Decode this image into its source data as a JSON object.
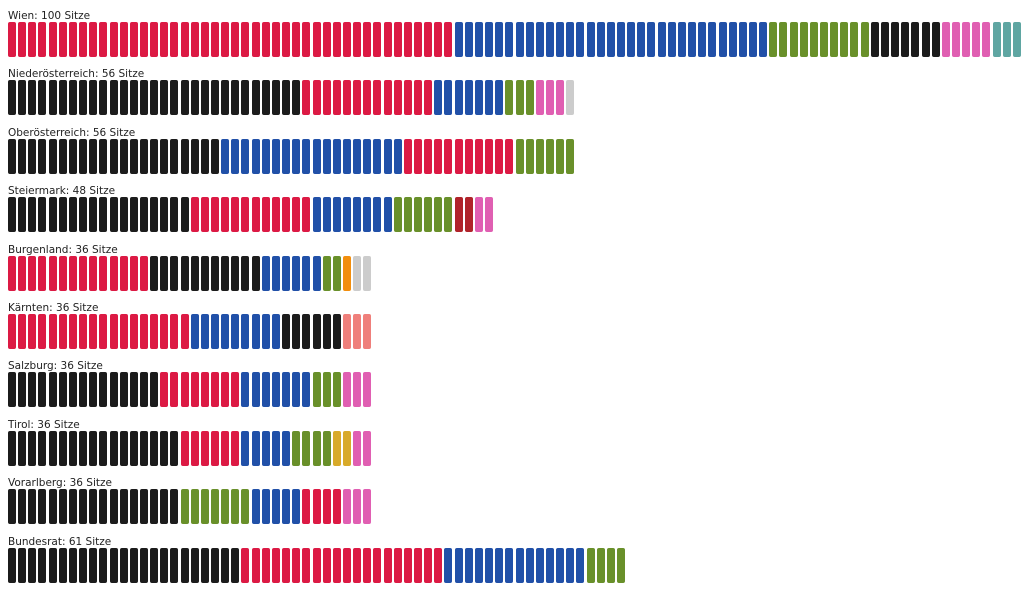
{
  "colors": {
    "red": "#dc1a44",
    "blue": "#2150a8",
    "green": "#69902a",
    "black": "#1c1c1c",
    "pink": "#e05fb2",
    "teal": "#5fa6a2",
    "grey": "#cccccc",
    "orange": "#f28e0d",
    "salmon": "#ef7f7b",
    "darkred": "#b0232a",
    "gold": "#d8aa2a"
  },
  "chart_data": {
    "type": "bar",
    "rows": [
      {
        "label": "Wien: 100 Sitze",
        "segments": [
          {
            "color": "red",
            "seats": 44
          },
          {
            "color": "blue",
            "seats": 31
          },
          {
            "color": "green",
            "seats": 10
          },
          {
            "color": "black",
            "seats": 7
          },
          {
            "color": "pink",
            "seats": 5
          },
          {
            "color": "teal",
            "seats": 3
          }
        ]
      },
      {
        "label": "Niederösterreich: 56 Sitze",
        "segments": [
          {
            "color": "black",
            "seats": 29
          },
          {
            "color": "red",
            "seats": 13
          },
          {
            "color": "blue",
            "seats": 7
          },
          {
            "color": "green",
            "seats": 3
          },
          {
            "color": "pink",
            "seats": 3
          },
          {
            "color": "grey",
            "seats": 1
          }
        ]
      },
      {
        "label": "Oberösterreich: 56 Sitze",
        "segments": [
          {
            "color": "black",
            "seats": 21
          },
          {
            "color": "blue",
            "seats": 18
          },
          {
            "color": "red",
            "seats": 11
          },
          {
            "color": "green",
            "seats": 6
          }
        ]
      },
      {
        "label": "Steiermark: 48 Sitze",
        "segments": [
          {
            "color": "black",
            "seats": 18
          },
          {
            "color": "red",
            "seats": 12
          },
          {
            "color": "blue",
            "seats": 8
          },
          {
            "color": "green",
            "seats": 6
          },
          {
            "color": "darkred",
            "seats": 2
          },
          {
            "color": "pink",
            "seats": 2
          }
        ]
      },
      {
        "label": "Burgenland: 36 Sitze",
        "segments": [
          {
            "color": "red",
            "seats": 14
          },
          {
            "color": "black",
            "seats": 11
          },
          {
            "color": "blue",
            "seats": 6
          },
          {
            "color": "green",
            "seats": 2
          },
          {
            "color": "orange",
            "seats": 1
          },
          {
            "color": "grey",
            "seats": 2
          }
        ]
      },
      {
        "label": "Kärnten: 36 Sitze",
        "segments": [
          {
            "color": "red",
            "seats": 18
          },
          {
            "color": "blue",
            "seats": 9
          },
          {
            "color": "black",
            "seats": 6
          },
          {
            "color": "salmon",
            "seats": 3
          }
        ]
      },
      {
        "label": "Salzburg: 36 Sitze",
        "segments": [
          {
            "color": "black",
            "seats": 15
          },
          {
            "color": "red",
            "seats": 8
          },
          {
            "color": "blue",
            "seats": 7
          },
          {
            "color": "green",
            "seats": 3
          },
          {
            "color": "pink",
            "seats": 3
          }
        ]
      },
      {
        "label": "Tirol: 36 Sitze",
        "segments": [
          {
            "color": "black",
            "seats": 17
          },
          {
            "color": "red",
            "seats": 6
          },
          {
            "color": "blue",
            "seats": 5
          },
          {
            "color": "green",
            "seats": 4
          },
          {
            "color": "gold",
            "seats": 2
          },
          {
            "color": "pink",
            "seats": 2
          }
        ]
      },
      {
        "label": "Vorarlberg: 36 Sitze",
        "segments": [
          {
            "color": "black",
            "seats": 17
          },
          {
            "color": "green",
            "seats": 7
          },
          {
            "color": "blue",
            "seats": 5
          },
          {
            "color": "red",
            "seats": 4
          },
          {
            "color": "pink",
            "seats": 3
          }
        ]
      },
      {
        "label": "Bundesrat: 61 Sitze",
        "segments": [
          {
            "color": "black",
            "seats": 23
          },
          {
            "color": "red",
            "seats": 20
          },
          {
            "color": "blue",
            "seats": 14
          },
          {
            "color": "green",
            "seats": 4
          }
        ]
      }
    ]
  }
}
